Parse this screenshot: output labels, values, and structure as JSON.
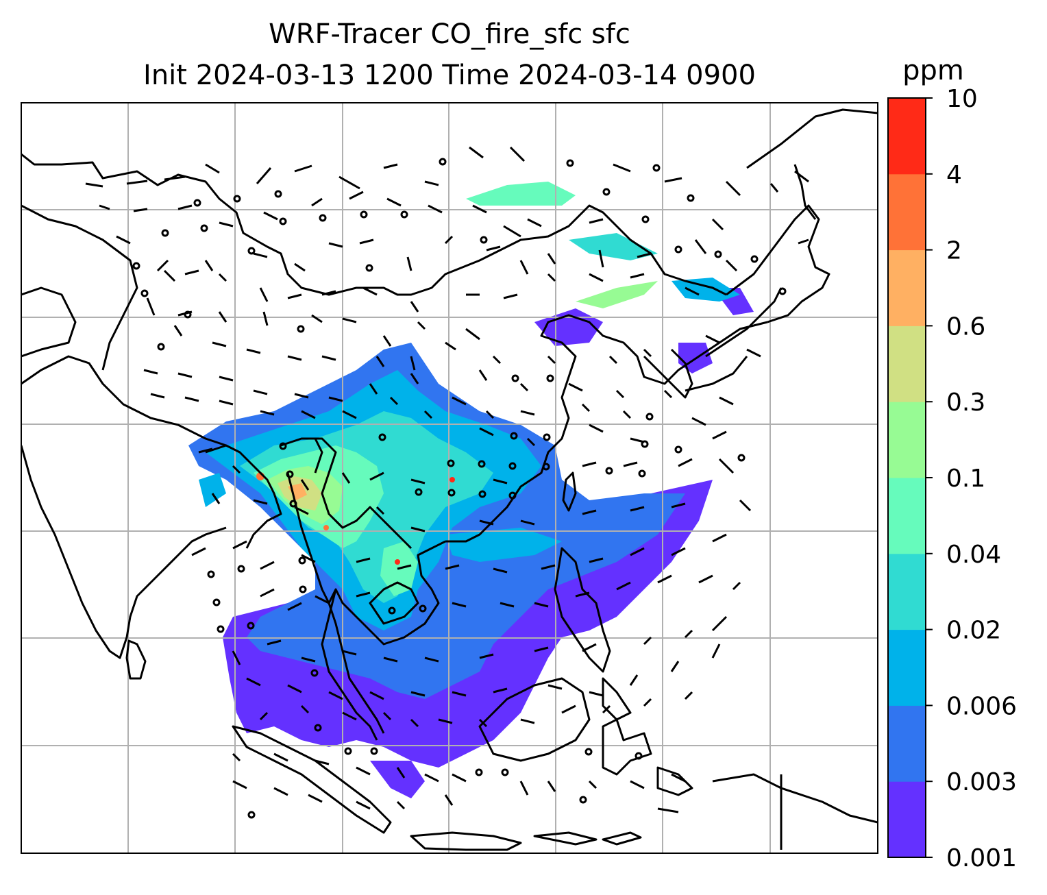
{
  "title_line1": "WRF-Tracer CO_fire_sfc sfc",
  "title_line2": "Init 2024-03-13 1200 Time 2024-03-14 0900",
  "colorbar": {
    "unit": "ppm",
    "levels": [
      "0.001",
      "0.003",
      "0.006",
      "0.02",
      "0.04",
      "0.1",
      "0.3",
      "0.6",
      "2",
      "4",
      "10"
    ],
    "colors": [
      "#6431ff",
      "#3175f0",
      "#00b2ea",
      "#30dbd2",
      "#66fbbc",
      "#97fb94",
      "#d0e083",
      "#ffb062",
      "#ff7237",
      "#ff2a17"
    ]
  },
  "map": {
    "background": "#ffffff",
    "grid_color": "#b0b0b0",
    "coastline_color": "#000000",
    "content": [
      "coastlines",
      "country borders",
      "lat-lon gridlines",
      "CO fire tracer shading",
      "surface wind barbs"
    ]
  }
}
